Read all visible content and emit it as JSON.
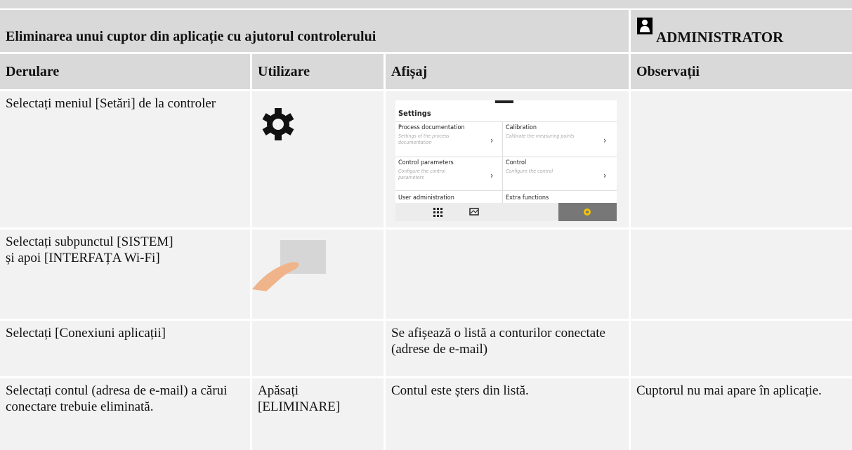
{
  "header": {
    "title": "Eliminarea unui cuptor din aplicație cu ajutorul controlerului",
    "role": "ADMINISTRATOR"
  },
  "table": {
    "columns": [
      "Derulare",
      "Utilizare",
      "Afișaj",
      "Observații"
    ],
    "rows": [
      {
        "step": "Selectați meniul [Setări] de la controler"
      },
      {
        "step": "Selectați subpunctul [SISTEM] și apoi [INTERFAȚA Wi-Fi]"
      },
      {
        "step": "Selectați [Conexiuni aplicații]",
        "display": "Se afișează o listă a conturilor conectate (adrese de e-mail)"
      },
      {
        "step": "Selectați contul (adresa de e-mail) a cărui conectare trebuie eliminată.",
        "action": "Apăsați [ELIMINARE]",
        "display": "Contul este șters din listă.",
        "notes": "Cuptorul nu mai apare în aplicație."
      }
    ]
  },
  "settings_screen": {
    "title": "Settings",
    "items": [
      {
        "label": "Process documentation",
        "hint": "Settings of the process documentation"
      },
      {
        "label": "Calibration",
        "hint": "Calibrate the measuring points"
      },
      {
        "label": "Control parameters",
        "hint": "Configure the control parameters"
      },
      {
        "label": "Control",
        "hint": "Configure the control"
      },
      {
        "label": "User administration"
      },
      {
        "label": "Extra functions"
      }
    ]
  }
}
